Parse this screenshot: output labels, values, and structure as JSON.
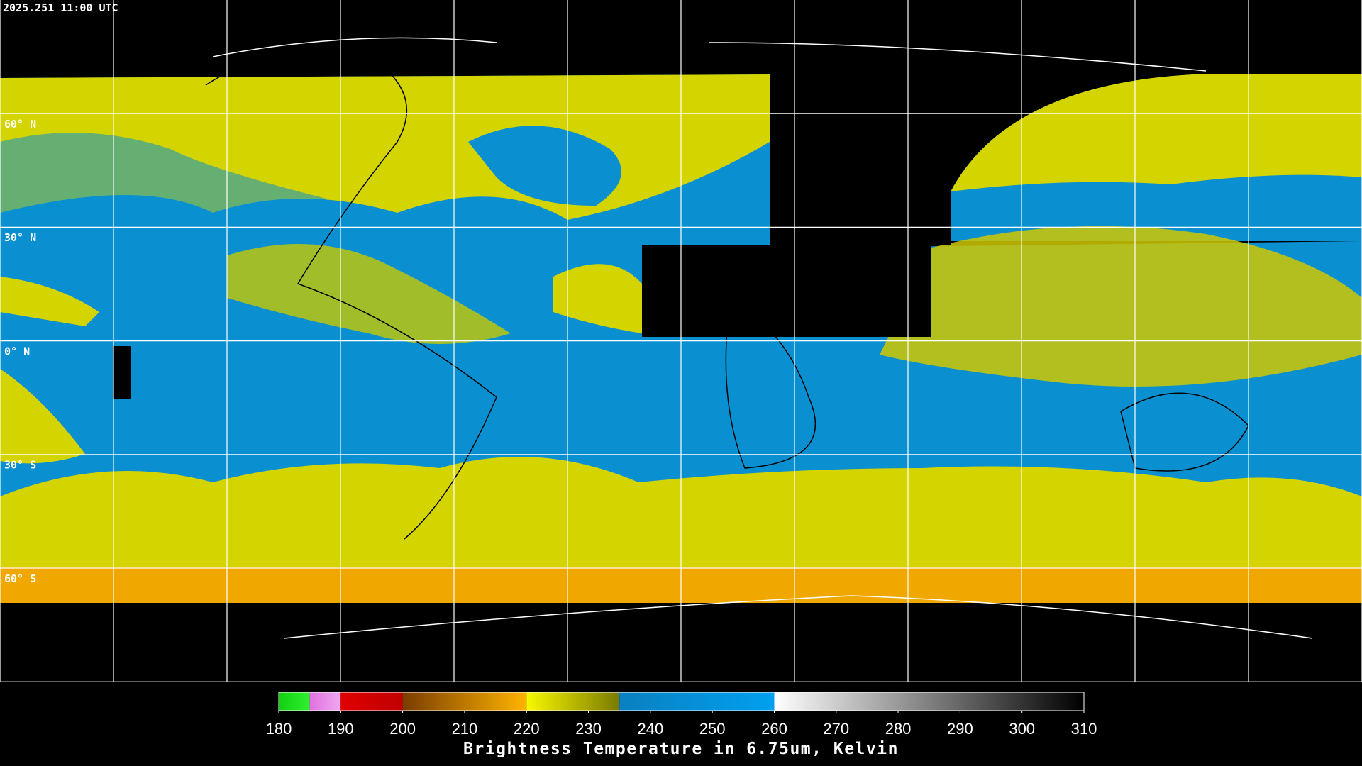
{
  "header": {
    "title": "2025.251 11:00 UTC"
  },
  "map": {
    "lat_labels": [
      "60° N",
      "30° N",
      "0° N",
      "30° S",
      "60° S"
    ]
  },
  "colorbar": {
    "min": 180,
    "max": 310,
    "ticks": [
      180,
      190,
      200,
      210,
      220,
      230,
      240,
      250,
      260,
      270,
      280,
      290,
      300,
      310
    ],
    "segments": [
      {
        "from": 180,
        "to": 185,
        "colors": [
          "#10d010",
          "#30ee30"
        ]
      },
      {
        "from": 185,
        "to": 190,
        "colors": [
          "#e070e0",
          "#f0a8f0"
        ]
      },
      {
        "from": 190,
        "to": 200,
        "colors": [
          "#e00000",
          "#c00000"
        ]
      },
      {
        "from": 200,
        "to": 220,
        "colors": [
          "#7a3c00",
          "#ffb400"
        ]
      },
      {
        "from": 220,
        "to": 235,
        "colors": [
          "#f8f800",
          "#7a7a00"
        ]
      },
      {
        "from": 235,
        "to": 260,
        "colors": [
          "#0a80c0",
          "#00a0f0"
        ]
      },
      {
        "from": 260,
        "to": 310,
        "colors": [
          "#ffffff",
          "#000000"
        ]
      }
    ],
    "label": "Brightness Temperature in 6.75um, Kelvin"
  }
}
